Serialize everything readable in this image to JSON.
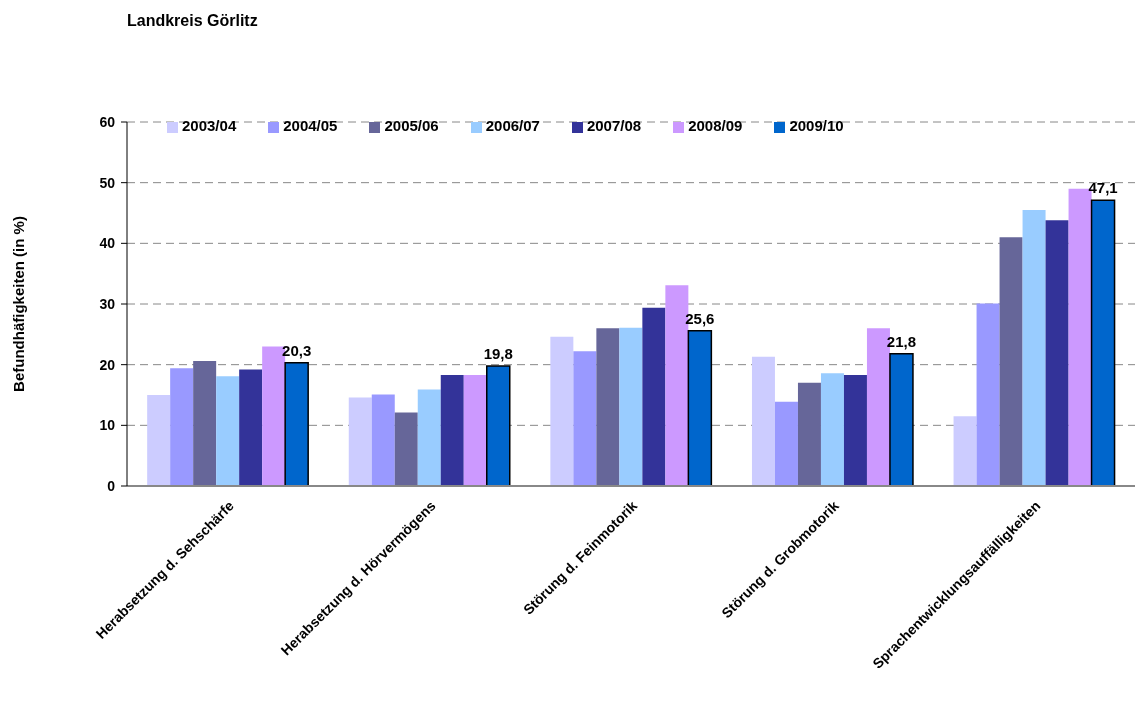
{
  "chart_data": {
    "type": "bar",
    "title": "Landkreis Görlitz",
    "ylabel": "Befundhäfigkeiten (in %)",
    "categories": [
      "Herabsetzung d. Sehschärfe",
      "Herabsetzung d. Hörvermögens",
      "Störung d. Feinmotorik",
      "Störung d. Grobmotorik",
      "Sprachentwicklungsauffälligkeiten"
    ],
    "series": [
      {
        "name": "2003/04",
        "color": "#ccccff",
        "values": [
          15.0,
          14.6,
          24.6,
          21.3,
          11.5
        ]
      },
      {
        "name": "2004/05",
        "color": "#9999ff",
        "values": [
          19.4,
          15.1,
          22.2,
          13.9,
          30.1
        ]
      },
      {
        "name": "2005/06",
        "color": "#666699",
        "values": [
          20.6,
          12.1,
          26.0,
          17.0,
          41.0
        ]
      },
      {
        "name": "2006/07",
        "color": "#99ccff",
        "values": [
          18.1,
          15.9,
          26.1,
          18.6,
          45.5
        ]
      },
      {
        "name": "2007/08",
        "color": "#333399",
        "values": [
          19.2,
          18.3,
          29.4,
          18.3,
          43.8
        ]
      },
      {
        "name": "2008/09",
        "color": "#cc99ff",
        "values": [
          23.0,
          18.3,
          33.1,
          26.0,
          49.0
        ]
      },
      {
        "name": "2009/10",
        "color": "#0066cc",
        "values": [
          20.3,
          19.8,
          25.6,
          21.8,
          47.1
        ],
        "value_labels": [
          "20,3",
          "19,8",
          "25,6",
          "21,8",
          "47,1"
        ]
      }
    ],
    "ylim": [
      0,
      60
    ],
    "yticks": [
      0,
      10,
      20,
      30,
      40,
      50,
      60
    ],
    "grid": "y",
    "legend": "top"
  }
}
